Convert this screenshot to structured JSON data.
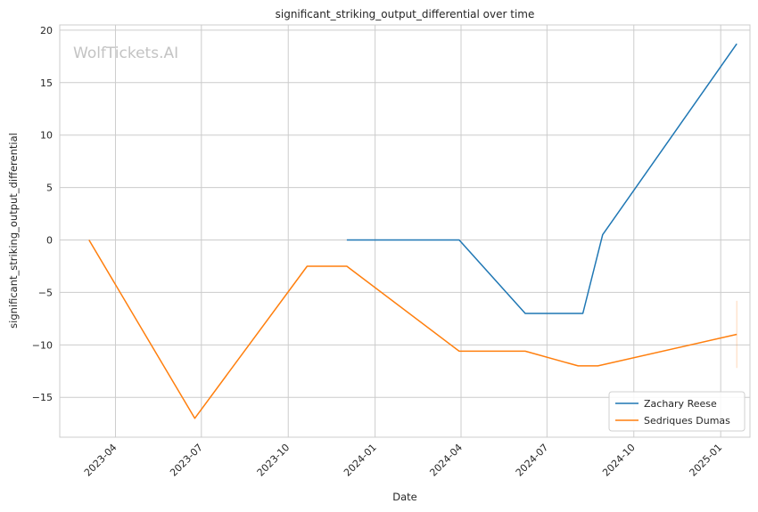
{
  "chart_data": {
    "type": "line",
    "title": "significant_striking_output_differential over time",
    "xlabel": "Date",
    "ylabel": "significant_striking_output_differential",
    "watermark": "WolfTickets.AI",
    "x_range": [
      "2023-02-01",
      "2025-02-01"
    ],
    "ylim": [
      -18.8,
      20.5
    ],
    "y_ticks": [
      -15,
      -10,
      -5,
      0,
      5,
      10,
      15,
      20
    ],
    "x_ticks": [
      {
        "date": "2023-04-01",
        "label": "2023-04"
      },
      {
        "date": "2023-07-01",
        "label": "2023-07"
      },
      {
        "date": "2023-10-01",
        "label": "2023-10"
      },
      {
        "date": "2024-01-01",
        "label": "2024-01"
      },
      {
        "date": "2024-04-01",
        "label": "2024-04"
      },
      {
        "date": "2024-07-01",
        "label": "2024-07"
      },
      {
        "date": "2024-10-01",
        "label": "2024-10"
      },
      {
        "date": "2025-01-01",
        "label": "2025-01"
      }
    ],
    "grid": true,
    "legend_position": "bottom-right",
    "series": [
      {
        "name": "Zachary Reese",
        "color": "#1f77b4",
        "points": [
          {
            "x": "2023-12-02",
            "y": 0
          },
          {
            "x": "2024-03-30",
            "y": 0
          },
          {
            "x": "2024-06-08",
            "y": -7
          },
          {
            "x": "2024-08-08",
            "y": -7
          },
          {
            "x": "2024-08-29",
            "y": 0.5
          },
          {
            "x": "2025-01-18",
            "y": 18.7
          }
        ]
      },
      {
        "name": "Sedriques Dumas",
        "color": "#ff7f0e",
        "points": [
          {
            "x": "2023-03-04",
            "y": 0
          },
          {
            "x": "2023-06-24",
            "y": -17
          },
          {
            "x": "2023-10-21",
            "y": -2.5
          },
          {
            "x": "2023-12-02",
            "y": -2.5
          },
          {
            "x": "2024-03-30",
            "y": -10.6
          },
          {
            "x": "2024-06-08",
            "y": -10.6
          },
          {
            "x": "2024-08-03",
            "y": -12
          },
          {
            "x": "2024-08-24",
            "y": -12
          },
          {
            "x": "2025-01-18",
            "y": -9
          }
        ],
        "error_bar": {
          "x": "2025-01-18",
          "low": -12.2,
          "high": -5.8
        }
      }
    ]
  }
}
